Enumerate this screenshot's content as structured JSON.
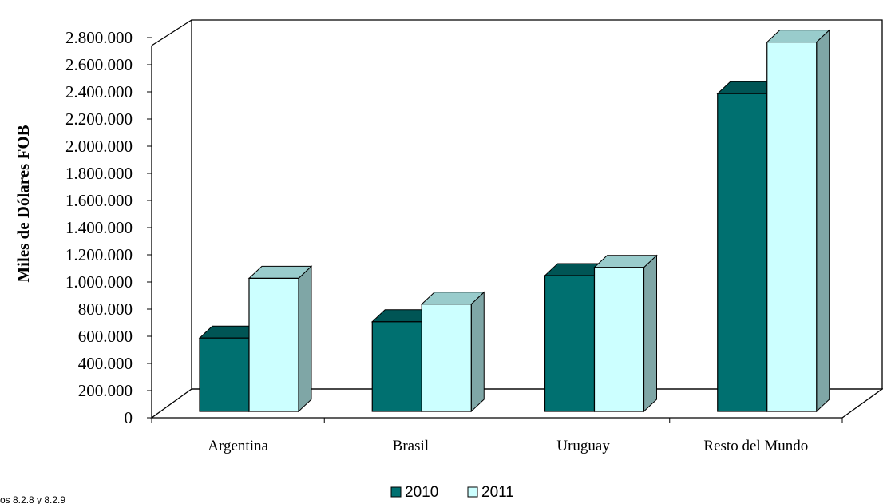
{
  "colors": {
    "s2010_front": "#007070",
    "s2010_top": "#005555",
    "s2010_side": "#004a4a",
    "s2011_front": "#ccffff",
    "s2011_top": "#99cccc",
    "s2011_side": "#7fa6a6"
  },
  "footnote": "os 8.2.8 y 8.2.9",
  "chart_data": {
    "type": "bar",
    "categories": [
      "Argentina",
      "Brasil",
      "Uruguay",
      "Resto del Mundo"
    ],
    "series": [
      {
        "name": "2010",
        "values": [
          540000,
          660000,
          1000000,
          2340000
        ]
      },
      {
        "name": "2011",
        "values": [
          980000,
          790000,
          1060000,
          2720000
        ]
      }
    ],
    "ylabel": "Miles de Dólares FOB",
    "ylim": [
      0,
      2800000
    ],
    "yticks": [
      "0",
      "200.000",
      "400.000",
      "600.000",
      "800.000",
      "1.000.000",
      "1.200.000",
      "1.400.000",
      "1.600.000",
      "1.800.000",
      "2.000.000",
      "2.200.000",
      "2.400.000",
      "2.600.000",
      "2.800.000"
    ],
    "tick_step": 200000,
    "grid": false,
    "legend": "bottom-center",
    "style": "3d-clustered"
  }
}
